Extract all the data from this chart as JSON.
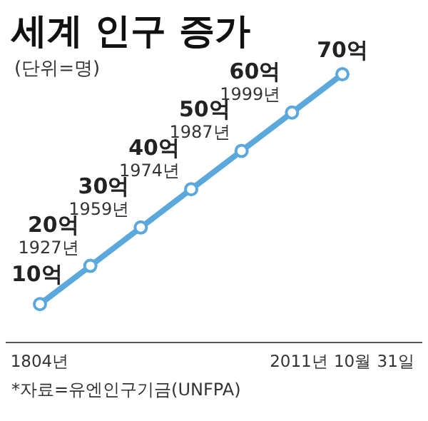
{
  "chart_data": {
    "type": "line",
    "title": "세계 인구 증가",
    "subtitle": "(단위=명)",
    "categories": [
      "1804년",
      null,
      null,
      null,
      null,
      null,
      "2011년 10월 31일"
    ],
    "series": [
      {
        "color": "#5aa8dc",
        "values": [
          10,
          20,
          30,
          40,
          50,
          60,
          70
        ],
        "value_labels": [
          "10억",
          "20억",
          "30억",
          "40억",
          "50억",
          "60억",
          "70억"
        ]
      }
    ],
    "marker": "circle",
    "line_style": "solid",
    "annotations": [
      "1927년",
      "1959년",
      "1974년",
      "1987년",
      "1999년",
      "*자료=유엔인구기금(UNFPA)"
    ]
  }
}
